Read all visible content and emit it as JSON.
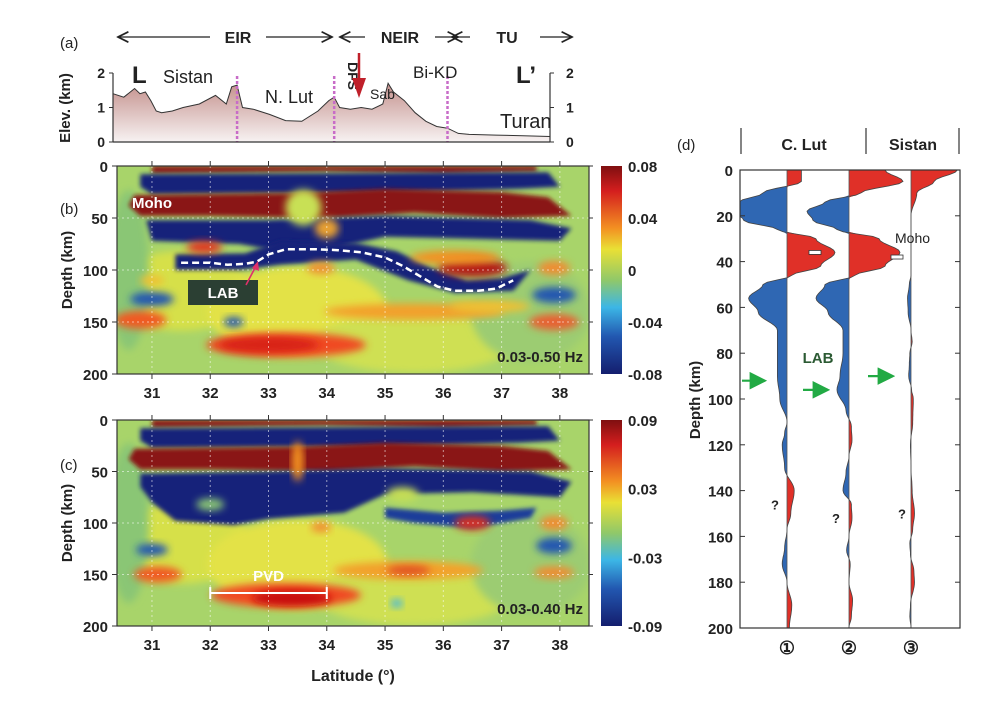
{
  "chart_data": [
    {
      "panel": "(a)",
      "type": "area",
      "ylabel": "Elev. (km)",
      "ylim": [
        0,
        2
      ],
      "yticks": [
        "0",
        "1",
        "2"
      ],
      "xlim": [
        30.4,
        38.5
      ],
      "section_start": "L",
      "section_end": "L’",
      "regions": [
        {
          "label": "EIR",
          "from": 30.4,
          "to": 34.6
        },
        {
          "label": "NEIR",
          "from": 34.6,
          "to": 36.6
        },
        {
          "label": "TU",
          "from": 36.6,
          "to": 38.5
        }
      ],
      "place_labels": [
        "Sistan",
        "N. Lut",
        "DFS",
        "Sab",
        "Bi-KD",
        "Turan"
      ],
      "boundaries": [
        32.7,
        34.5,
        36.6
      ],
      "profile": {
        "x": [
          30.4,
          30.6,
          30.8,
          30.9,
          31.0,
          31.1,
          31.2,
          31.3,
          31.5,
          31.7,
          32.0,
          32.3,
          32.5,
          32.6,
          32.7,
          32.8,
          33.0,
          33.3,
          33.6,
          33.9,
          34.2,
          34.4,
          34.5,
          34.6,
          34.8,
          35.0,
          35.2,
          35.4,
          35.5,
          35.6,
          35.8,
          36.0,
          36.2,
          36.4,
          36.6,
          36.8,
          37.0,
          37.5,
          38.0,
          38.5
        ],
        "elev_km": [
          1.4,
          1.3,
          1.55,
          1.4,
          1.45,
          1.2,
          0.9,
          0.85,
          0.9,
          1.0,
          1.1,
          1.35,
          1.1,
          1.6,
          1.65,
          1.0,
          0.95,
          0.8,
          0.62,
          0.6,
          0.9,
          1.2,
          1.3,
          1.0,
          0.95,
          1.0,
          0.95,
          1.1,
          1.7,
          1.45,
          1.2,
          0.85,
          0.6,
          0.45,
          0.4,
          0.25,
          0.22,
          0.2,
          0.18,
          0.16
        ]
      },
      "annotation": "DFS arrow at 34.5"
    },
    {
      "panel": "(b)",
      "type": "heatmap",
      "xlabel": "",
      "ylabel": "Depth (km)",
      "xlim": [
        30.4,
        38.5
      ],
      "ylim": [
        200,
        0
      ],
      "xticks": [
        "31",
        "32",
        "33",
        "34",
        "35",
        "36",
        "37",
        "38"
      ],
      "yticks": [
        "0",
        "50",
        "100",
        "150",
        "200"
      ],
      "colorbar": {
        "min": -0.08,
        "max": 0.08,
        "ticks": [
          "0.08",
          "0.04",
          "0",
          "-0.04",
          "-0.08"
        ]
      },
      "frequency_label": "0.03-0.50 Hz",
      "annotations": [
        "Moho",
        "LAB"
      ],
      "lab_line": {
        "lat": [
          31.5,
          32.0,
          32.3,
          32.6,
          32.8,
          33.0,
          33.3,
          33.8,
          34.2,
          34.6,
          35.0,
          35.3,
          35.6,
          35.9,
          36.2,
          36.6,
          36.9,
          37.2
        ],
        "depth_km": [
          93,
          93,
          95,
          94,
          92,
          85,
          80,
          80,
          81,
          83,
          88,
          96,
          106,
          116,
          120,
          120,
          118,
          110
        ]
      }
    },
    {
      "panel": "(c)",
      "type": "heatmap",
      "xlabel": "Latitude (°)",
      "ylabel": "Depth (km)",
      "xlim": [
        30.4,
        38.5
      ],
      "ylim": [
        200,
        0
      ],
      "xticks": [
        "31",
        "32",
        "33",
        "34",
        "35",
        "36",
        "37",
        "38"
      ],
      "yticks": [
        "0",
        "50",
        "100",
        "150",
        "200"
      ],
      "colorbar": {
        "min": -0.09,
        "max": 0.09,
        "ticks": [
          "0.09",
          "0.03",
          "-0.03",
          "-0.09"
        ]
      },
      "frequency_label": "0.03-0.40 Hz",
      "annotations": [
        "PVD"
      ],
      "pvd_bar": {
        "lat_from": 32.0,
        "lat_to": 34.0,
        "depth_km": 168
      }
    },
    {
      "panel": "(d)",
      "type": "line",
      "ylabel": "Depth (km)",
      "ylim": [
        200,
        0
      ],
      "yticks": [
        "0",
        "20",
        "40",
        "60",
        "80",
        "100",
        "120",
        "140",
        "160",
        "180",
        "200"
      ],
      "group_labels": [
        "C. Lut",
        "Sistan"
      ],
      "trace_labels": [
        "①",
        "②",
        "③"
      ],
      "annotations": [
        "Moho",
        "LAB",
        "?"
      ],
      "lab_arrows_depth_km": [
        92,
        96,
        90
      ],
      "moho_depth_km": [
        36,
        38
      ],
      "series": [
        {
          "name": "①",
          "depth_km": [
            0,
            5,
            10,
            14,
            18,
            22,
            26,
            30,
            36,
            42,
            46,
            50,
            56,
            62,
            70,
            80,
            90,
            100,
            110,
            115,
            120,
            130,
            140,
            150,
            157,
            165,
            172,
            180,
            190,
            200
          ],
          "amplitude": [
            0.3,
            0.3,
            -0.5,
            -1.0,
            -1.1,
            -0.9,
            -0.2,
            0.6,
            1.0,
            0.7,
            0.1,
            -0.5,
            -0.8,
            -0.6,
            -0.2,
            -0.2,
            -0.2,
            -0.15,
            0,
            -0.05,
            -0.1,
            -0.05,
            0.15,
            0.08,
            0,
            -0.05,
            -0.1,
            0,
            0.1,
            0.05
          ]
        },
        {
          "name": "②",
          "depth_km": [
            0,
            5,
            10,
            14,
            18,
            22,
            26,
            30,
            36,
            42,
            46,
            50,
            56,
            62,
            70,
            80,
            90,
            96,
            105,
            112,
            118,
            125,
            132,
            140,
            146,
            152,
            160,
            166,
            172,
            180,
            188,
            195,
            200
          ],
          "amplitude": [
            0.6,
            0.9,
            0.2,
            -0.4,
            -0.7,
            -0.6,
            -0.2,
            0.5,
            0.85,
            0.6,
            0.1,
            -0.4,
            -0.55,
            -0.35,
            -0.1,
            -0.1,
            -0.15,
            -0.2,
            -0.05,
            0.04,
            0.05,
            0,
            -0.05,
            -0.1,
            0.04,
            0.05,
            0,
            -0.04,
            0.02,
            0,
            0.06,
            0.04,
            0
          ]
        },
        {
          "name": "③",
          "depth_km": [
            0,
            5,
            10,
            20,
            30,
            40,
            46,
            50,
            56,
            62,
            70,
            75,
            80,
            85,
            90,
            96,
            100,
            110,
            120,
            130,
            140,
            150,
            157,
            163,
            168,
            175,
            180,
            190,
            195,
            200
          ],
          "amplitude": [
            0.8,
            0.4,
            0.1,
            0,
            0,
            0,
            0,
            -0.03,
            -0.06,
            -0.05,
            0,
            0.02,
            -0.02,
            -0.03,
            -0.04,
            0.01,
            0.04,
            0.03,
            -0.01,
            0,
            0.02,
            0.06,
            0.03,
            -0.02,
            -0.01,
            0.05,
            0.06,
            -0.01,
            -0.02,
            0
          ]
        }
      ]
    }
  ],
  "labels": {
    "panel_a": "(a)",
    "panel_b": "(b)",
    "panel_c": "(c)",
    "panel_d": "(d)",
    "eir": "EIR",
    "neir": "NEIR",
    "tu": "TU",
    "l_start": "L",
    "l_end": "L’",
    "sistan": "Sistan",
    "nlut": "N. Lut",
    "dfs": "DFS",
    "sab": "Sab",
    "bikd": "Bi-KD",
    "turan": "Turan",
    "elev_ylabel": "Elev. (km)",
    "depth_ylabel": "Depth (km)",
    "latitude_xlabel": "Latitude (°)",
    "moho": "Moho",
    "lab": "LAB",
    "pvd": "PVD",
    "freq_b": "0.03-0.50 Hz",
    "freq_c": "0.03-0.40 Hz",
    "clut": "C. Lut",
    "sistan_d": "Sistan",
    "moho_d": "Moho",
    "lab_d": "LAB",
    "q": "?",
    "t1": "①",
    "t2": "②",
    "t3": "③"
  },
  "colors": {
    "positive": "#e03028",
    "negative": "#2f67b3",
    "lab_arrow": "#22aa44",
    "dfs_arrow": "#c0202a",
    "boundary": "#c86cc8",
    "elev_fill_top": "#c89a96",
    "elev_fill_bottom": "#f4eeee"
  }
}
